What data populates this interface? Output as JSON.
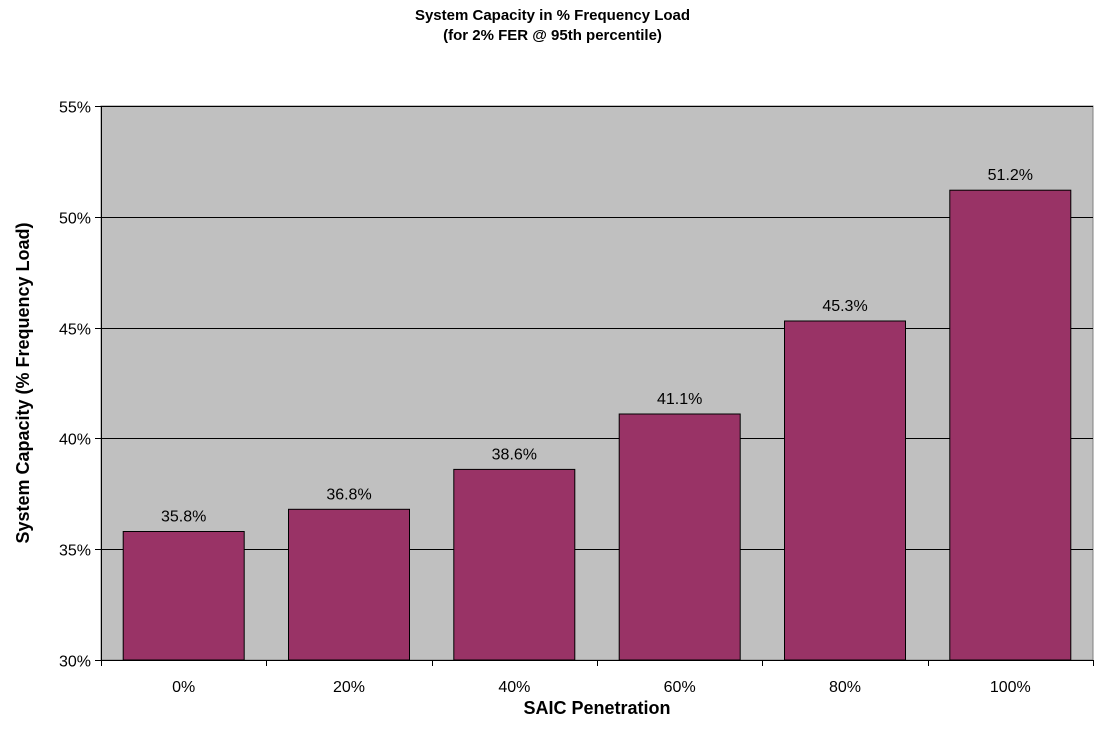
{
  "chart_data": {
    "type": "bar",
    "title": "System Capacity in % Frequency Load",
    "subtitle": "(for 2% FER @ 95th percentile)",
    "xlabel": "SAIC Penetration",
    "ylabel": "System Capacity (% Frequency Load)",
    "categories": [
      "0%",
      "20%",
      "40%",
      "60%",
      "80%",
      "100%"
    ],
    "values": [
      35.8,
      36.8,
      38.6,
      41.1,
      45.3,
      51.2
    ],
    "data_labels": [
      "35.8%",
      "36.8%",
      "38.6%",
      "41.1%",
      "45.3%",
      "51.2%"
    ],
    "ylim": [
      30,
      55
    ],
    "yticks": [
      30,
      35,
      40,
      45,
      50,
      55
    ],
    "ytick_labels": [
      "30%",
      "35%",
      "40%",
      "45%",
      "50%",
      "55%"
    ],
    "grid": true,
    "legend": "none",
    "colors": {
      "bar_fill": "#993366",
      "bar_stroke": "#000000",
      "plot_background": "#c0c0c0",
      "gridline": "#000000"
    }
  }
}
